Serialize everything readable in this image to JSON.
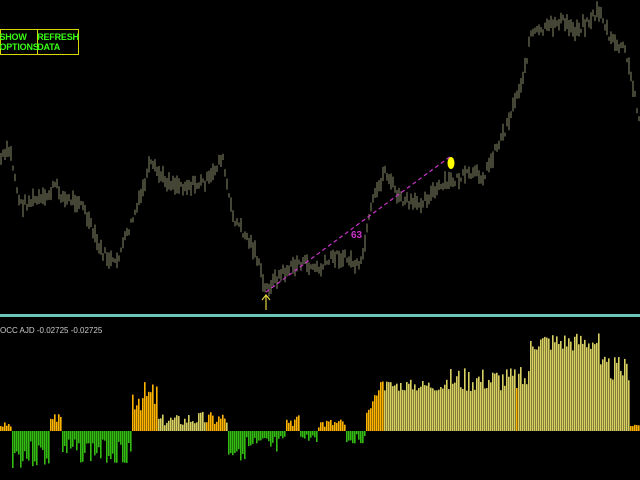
{
  "toolbar": {
    "show_options_label": "SHOW OPTIONS",
    "refresh_data_label": "REFRESH DATA"
  },
  "price_chart": {
    "trendline_label": "63",
    "candle_color": "#8a8a6a",
    "trendline_color": "#cc33cc",
    "marker_color": "#ffff00"
  },
  "indicator": {
    "label": "OCC AJD -0.02725 -0.02725",
    "colors": {
      "green": "#33bb11",
      "orange": "#ffb400",
      "khaki": "#d8d060"
    }
  },
  "colors": {
    "background": "#000000",
    "divider": "#6cc6b8",
    "button_border": "#d8d800",
    "button_text": "#39ff14"
  }
}
